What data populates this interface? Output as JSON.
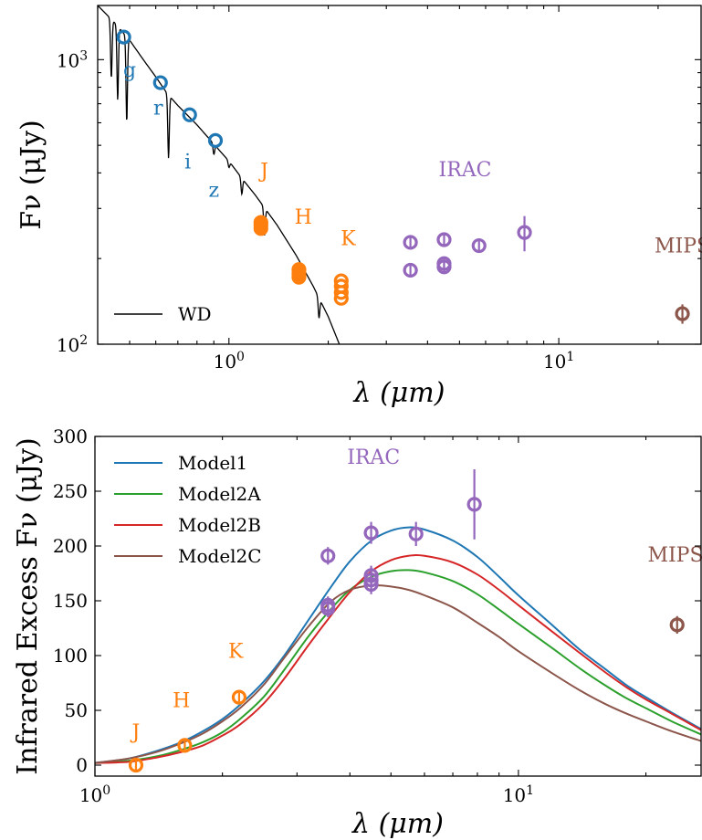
{
  "chart_data": [
    {
      "type": "scatter",
      "xscale": "log",
      "yscale": "log",
      "xlabel": "λ (μm)",
      "ylabel": "Fν (μJy)",
      "xlim": [
        0.4,
        27
      ],
      "ylim": [
        100,
        1550
      ],
      "xticks": [
        {
          "value": 1,
          "base": "10",
          "exp": "0"
        },
        {
          "value": 10,
          "base": "10",
          "exp": "1"
        }
      ],
      "yticks": [
        {
          "value": 100,
          "base": "10",
          "exp": "2"
        },
        {
          "value": 1000,
          "base": "10",
          "exp": "3"
        }
      ],
      "legend": {
        "position": "bottom-left",
        "entries": [
          {
            "label": "WD",
            "color": "#000000"
          }
        ]
      },
      "wd_model": {
        "color": "#000000",
        "x": [
          0.4,
          0.45,
          0.5,
          0.55,
          0.6,
          0.65,
          0.7,
          0.8,
          0.9,
          1.0,
          1.1,
          1.2,
          1.3,
          1.4,
          1.6,
          1.8,
          2.0,
          2.2
        ],
        "y": [
          1550,
          1350,
          1170,
          1000,
          870,
          760,
          690,
          590,
          505,
          440,
          380,
          335,
          295,
          262,
          205,
          160,
          125,
          95
        ],
        "absorption_lines": [
          {
            "x": 0.44,
            "depth": 0.62
          },
          {
            "x": 0.46,
            "depth": 0.55
          },
          {
            "x": 0.49,
            "depth": 0.5
          },
          {
            "x": 0.656,
            "depth": 0.6
          },
          {
            "x": 0.9,
            "depth": 0.92
          },
          {
            "x": 1.0,
            "depth": 0.95
          },
          {
            "x": 1.094,
            "depth": 0.88
          },
          {
            "x": 1.282,
            "depth": 0.8
          },
          {
            "x": 1.875,
            "depth": 0.85
          }
        ]
      },
      "series": [
        {
          "group": "optical",
          "color": "#1f77b4",
          "x": [
            0.48,
            0.62,
            0.76,
            0.91
          ],
          "y": [
            1200,
            830,
            640,
            520
          ],
          "yerr": [
            0,
            0,
            0,
            0
          ],
          "filled": false
        },
        {
          "group": "J",
          "color": "#ff7f0e",
          "x": [
            1.25,
            1.25,
            1.25
          ],
          "y": [
            255,
            262,
            268
          ],
          "yerr": [
            0,
            0,
            0
          ],
          "filled": true
        },
        {
          "group": "H",
          "color": "#ff7f0e",
          "x": [
            1.63,
            1.63,
            1.63
          ],
          "y": [
            172,
            177,
            183
          ],
          "yerr": [
            0,
            0,
            0
          ],
          "filled": true
        },
        {
          "group": "K",
          "color": "#ff7f0e",
          "x": [
            2.19,
            2.19,
            2.19,
            2.19
          ],
          "y": [
            145,
            152,
            160,
            167
          ],
          "yerr": [
            0,
            0,
            0,
            0
          ],
          "filled": false
        },
        {
          "group": "IRAC",
          "color": "#9467bd",
          "x": [
            3.55,
            3.55,
            4.49,
            4.49,
            4.49,
            5.73,
            7.87
          ],
          "y": [
            228,
            182,
            233,
            192,
            187,
            222,
            247
          ],
          "yerr": [
            10,
            10,
            11,
            10,
            10,
            12,
            35
          ],
          "filled": false
        },
        {
          "group": "MIPS",
          "color": "#8c564b",
          "x": [
            23.7
          ],
          "y": [
            128
          ],
          "yerr": [
            10
          ],
          "filled": false
        }
      ],
      "annotations": [
        {
          "text": "g",
          "x": 0.5,
          "y": 870,
          "color": "#1f77b4"
        },
        {
          "text": "r",
          "x": 0.61,
          "y": 640,
          "color": "#1f77b4"
        },
        {
          "text": "i",
          "x": 0.75,
          "y": 415,
          "color": "#1f77b4"
        },
        {
          "text": "z",
          "x": 0.9,
          "y": 330,
          "color": "#1f77b4"
        },
        {
          "text": "J",
          "x": 1.28,
          "y": 385,
          "color": "#ff7f0e"
        },
        {
          "text": "H",
          "x": 1.68,
          "y": 265,
          "color": "#ff7f0e"
        },
        {
          "text": "K",
          "x": 2.3,
          "y": 223,
          "color": "#ff7f0e"
        },
        {
          "text": "IRAC",
          "x": 5.2,
          "y": 390,
          "color": "#9467bd"
        },
        {
          "text": "MIPS",
          "x": 23.7,
          "y": 210,
          "color": "#8c564b"
        }
      ]
    },
    {
      "type": "line",
      "xscale": "log",
      "xlabel": "λ (μm)",
      "ylabel": "Infrared Excess Fν (μJy)",
      "xlim": [
        1.0,
        27
      ],
      "ylim": [
        -10,
        300
      ],
      "xticks": [
        {
          "value": 1,
          "base": "10",
          "exp": "0"
        },
        {
          "value": 10,
          "base": "10",
          "exp": "1"
        }
      ],
      "yticks": [
        0,
        50,
        100,
        150,
        200,
        250,
        300
      ],
      "legend": {
        "position": "top-left",
        "entries": [
          {
            "label": "Model1",
            "color": "#1f77b4"
          },
          {
            "label": "Model2A",
            "color": "#2ca02c"
          },
          {
            "label": "Model2B",
            "color": "#d62728"
          },
          {
            "label": "Model2C",
            "color": "#8c564b"
          }
        ]
      },
      "series": [
        {
          "name": "Model1",
          "color": "#1f77b4",
          "x": [
            1.0,
            1.2,
            1.4,
            1.6,
            1.8,
            2.0,
            2.2,
            2.5,
            2.8,
            3.2,
            3.6,
            4.0,
            4.5,
            5.0,
            5.5,
            6.0,
            7.0,
            8.0,
            9.0,
            10,
            12,
            14,
            16,
            18,
            20,
            23,
            27
          ],
          "y": [
            2,
            6,
            13,
            21,
            31,
            42,
            55,
            76,
            100,
            133,
            162,
            186,
            205,
            214,
            217,
            215,
            205,
            190,
            172,
            155,
            128,
            105,
            88,
            73,
            62,
            48,
            33
          ]
        },
        {
          "name": "Model2A",
          "color": "#2ca02c",
          "x": [
            1.0,
            1.2,
            1.4,
            1.6,
            1.8,
            2.0,
            2.2,
            2.5,
            2.8,
            3.2,
            3.6,
            4.0,
            4.5,
            5.0,
            5.5,
            6.0,
            7.0,
            8.0,
            9.0,
            10,
            12,
            14,
            16,
            18,
            20,
            23,
            27
          ],
          "y": [
            2,
            4,
            8,
            14,
            21,
            30,
            42,
            62,
            87,
            118,
            142,
            160,
            172,
            177,
            178,
            176,
            168,
            156,
            142,
            129,
            107,
            88,
            73,
            61,
            52,
            40,
            28
          ]
        },
        {
          "name": "Model2B",
          "color": "#d62728",
          "x": [
            1.0,
            1.2,
            1.4,
            1.6,
            1.8,
            2.0,
            2.2,
            2.5,
            2.8,
            3.2,
            3.6,
            4.0,
            4.5,
            5.0,
            5.5,
            6.0,
            7.0,
            8.0,
            9.0,
            10,
            12,
            14,
            16,
            18,
            20,
            23,
            27
          ],
          "y": [
            2,
            3,
            7,
            12,
            18,
            27,
            37,
            56,
            79,
            110,
            136,
            158,
            177,
            187,
            191,
            191,
            185,
            174,
            160,
            146,
            122,
            102,
            85,
            71,
            60,
            47,
            32
          ]
        },
        {
          "name": "Model2C",
          "color": "#8c564b",
          "x": [
            1.0,
            1.2,
            1.4,
            1.6,
            1.8,
            2.0,
            2.2,
            2.5,
            2.8,
            3.2,
            3.6,
            4.0,
            4.5,
            5.0,
            5.5,
            6.0,
            7.0,
            8.0,
            9.0,
            10,
            12,
            14,
            16,
            18,
            20,
            23,
            27
          ],
          "y": [
            2,
            6,
            12,
            20,
            29,
            40,
            52,
            73,
            98,
            127,
            149,
            160,
            164,
            163,
            160,
            155,
            144,
            130,
            117,
            104,
            84,
            68,
            56,
            47,
            40,
            31,
            22
          ]
        }
      ],
      "points": [
        {
          "group": "J",
          "color": "#ff7f0e",
          "x": [
            1.25
          ],
          "y": [
            0
          ],
          "yerr": [
            5
          ]
        },
        {
          "group": "H",
          "color": "#ff7f0e",
          "x": [
            1.63
          ],
          "y": [
            18
          ],
          "yerr": [
            4
          ]
        },
        {
          "group": "K",
          "color": "#ff7f0e",
          "x": [
            2.19
          ],
          "y": [
            62
          ],
          "yerr": [
            4
          ]
        },
        {
          "group": "IRAC",
          "color": "#9467bd",
          "x": [
            3.55,
            3.55,
            3.55,
            4.49,
            4.49,
            4.49,
            4.49,
            5.73,
            7.87
          ],
          "y": [
            191,
            146,
            143,
            212,
            173,
            169,
            165,
            211,
            238
          ],
          "yerr": [
            8,
            8,
            8,
            10,
            9,
            9,
            9,
            11,
            32
          ]
        },
        {
          "group": "MIPS",
          "color": "#8c564b",
          "x": [
            23.7
          ],
          "y": [
            128
          ],
          "yerr": [
            8
          ]
        }
      ],
      "annotations": [
        {
          "text": "J",
          "x": 1.25,
          "y": 24,
          "color": "#ff7f0e"
        },
        {
          "text": "H",
          "x": 1.6,
          "y": 53,
          "color": "#ff7f0e"
        },
        {
          "text": "K",
          "x": 2.15,
          "y": 98,
          "color": "#ff7f0e"
        },
        {
          "text": "IRAC",
          "x": 4.55,
          "y": 275,
          "color": "#9467bd"
        },
        {
          "text": "MIPS",
          "x": 23.5,
          "y": 186,
          "color": "#8c564b"
        }
      ]
    }
  ]
}
